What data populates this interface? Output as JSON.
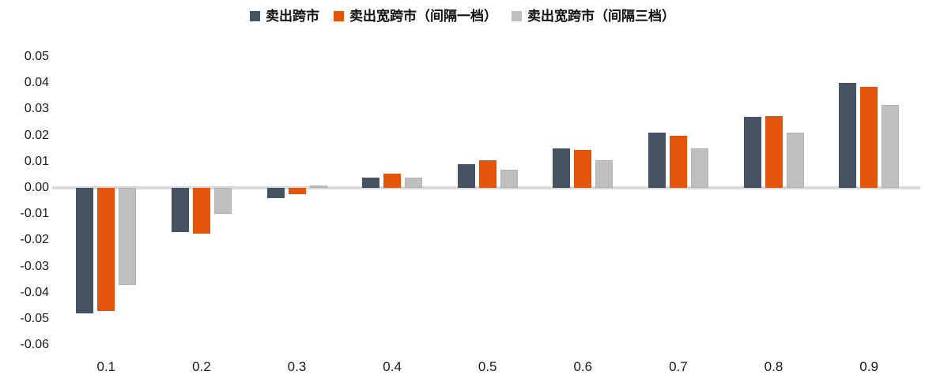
{
  "chart_data": {
    "type": "bar",
    "title": "",
    "xlabel": "",
    "ylabel": "",
    "categories": [
      "0.1",
      "0.2",
      "0.3",
      "0.4",
      "0.5",
      "0.6",
      "0.7",
      "0.8",
      "0.9"
    ],
    "series": [
      {
        "name": "卖出跨市",
        "color": "#465362",
        "values": [
          -0.048,
          -0.017,
          -0.004,
          0.004,
          0.009,
          0.015,
          0.021,
          0.027,
          0.04
        ]
      },
      {
        "name": "卖出宽跨市（间隔一档）",
        "color": "#E4550C",
        "values": [
          -0.047,
          -0.0175,
          -0.0025,
          0.0055,
          0.0105,
          0.0145,
          0.02,
          0.0275,
          0.0385
        ]
      },
      {
        "name": "卖出宽跨市（间隔三档）",
        "color": "#BFBFBF",
        "values": [
          -0.037,
          -0.01,
          0.001,
          0.004,
          0.007,
          0.0105,
          0.015,
          0.021,
          0.0315
        ]
      }
    ],
    "yticks": [
      "0.05",
      "0.04",
      "0.03",
      "0.02",
      "0.01",
      "0.00",
      "-0.01",
      "-0.02",
      "-0.03",
      "-0.04",
      "-0.05",
      "-0.06"
    ],
    "ylim": [
      -0.06,
      0.05
    ],
    "ytick_step": 0.01,
    "legend_position": "top-center",
    "grid": false,
    "axis_line_color": "#D9D9D9",
    "background_color": "#FFFFFF"
  }
}
